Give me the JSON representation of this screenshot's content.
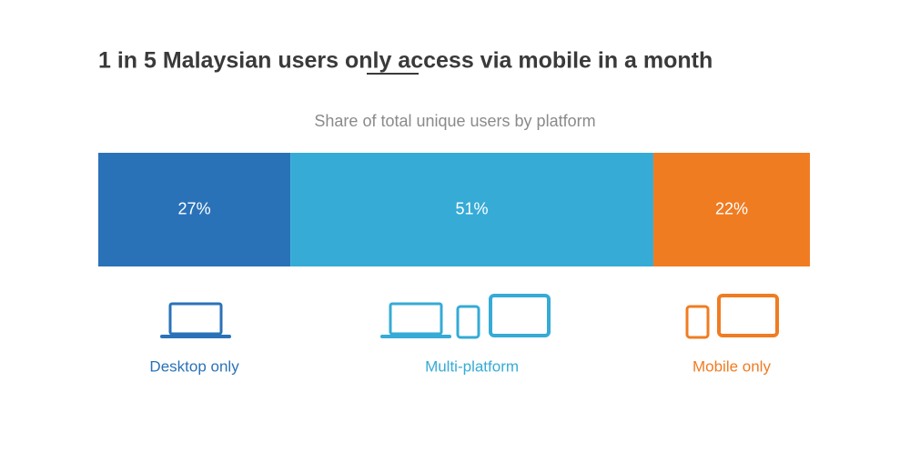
{
  "chart_data": {
    "type": "stacked-bar",
    "title": "1 in 5 Malaysian users only access via mobile in a month",
    "subtitle": "Share of total unique users by platform",
    "xlim": [
      0,
      100
    ],
    "series": [
      {
        "name": "Desktop only",
        "color": "#2a72b8",
        "values": [
          27
        ],
        "value_labels": [
          "27%"
        ]
      },
      {
        "name": "Multi-platform",
        "color": "#35abd6",
        "values": [
          51
        ],
        "value_labels": [
          "51%"
        ]
      },
      {
        "name": "Mobile only",
        "color": "#f07c22",
        "values": [
          22
        ],
        "value_labels": [
          "22%"
        ]
      }
    ]
  }
}
